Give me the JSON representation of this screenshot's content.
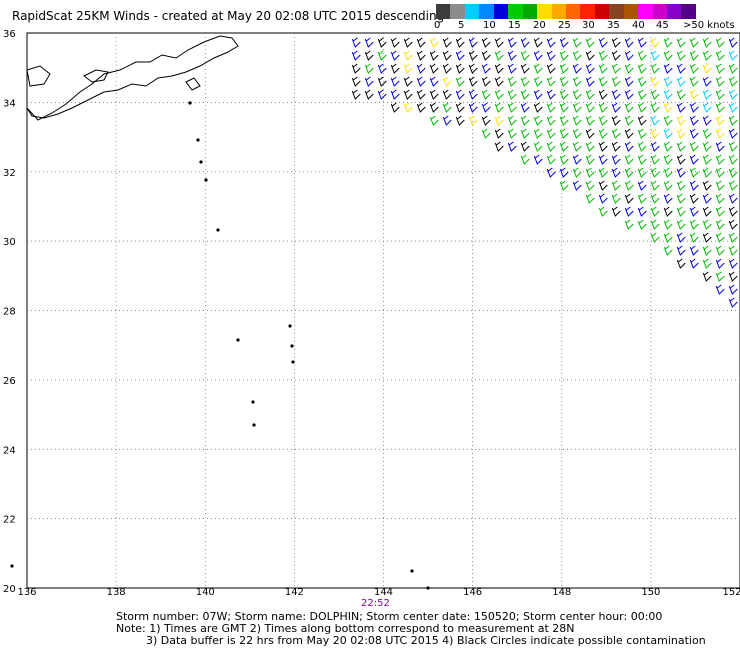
{
  "title": "RapidScat 25KM Winds - created at May 20 02:08 UTC 2015 descending",
  "legend": {
    "colors": [
      "#3c3c3c",
      "#8c8c8c",
      "#00ccff",
      "#0088ff",
      "#0000dd",
      "#00cc00",
      "#00aa00",
      "#ffdd00",
      "#ffaa00",
      "#ff6600",
      "#ff2200",
      "#cc0000",
      "#884422",
      "#aa5500",
      "#ff00ff",
      "#cc00cc",
      "#8800cc",
      "#550088"
    ],
    "labels": [
      "0",
      "5",
      "10",
      "15",
      "20",
      "25",
      "30",
      "35",
      "40",
      "45",
      ">50 knots"
    ]
  },
  "axes": {
    "x_ticks": [
      "136",
      "138",
      "140",
      "142",
      "144",
      "146",
      "148",
      "150",
      "152"
    ],
    "y_ticks": [
      "20",
      "22",
      "24",
      "26",
      "28",
      "30",
      "32",
      "34",
      "36"
    ],
    "lon_range": [
      136,
      152
    ],
    "lat_range": [
      20,
      36
    ]
  },
  "time_label": "22:52",
  "footer": {
    "line1": "Storm number: 07W;  Storm name: DOLPHIN;  Storm center date: 150520;  Storm center hour: 00:00",
    "line2": "Note: 1) Times are GMT  2) Times along bottom correspond to measurement at 28N",
    "line3": "3) Data buffer is 22 hrs from May 20 02:08 UTC 2015  4) Black Circles indicate possible contamination"
  },
  "swath": {
    "top_lon_start": 143.3,
    "edge_points": [
      [
        143.3,
        36
      ],
      [
        143.2,
        34.3
      ],
      [
        146.0,
        33.2
      ],
      [
        150.0,
        30.0
      ],
      [
        152,
        28.0
      ]
    ],
    "wind_palette": [
      "#000000",
      "#0000dd",
      "#00bb00",
      "#ffdd00",
      "#00ccff"
    ]
  }
}
